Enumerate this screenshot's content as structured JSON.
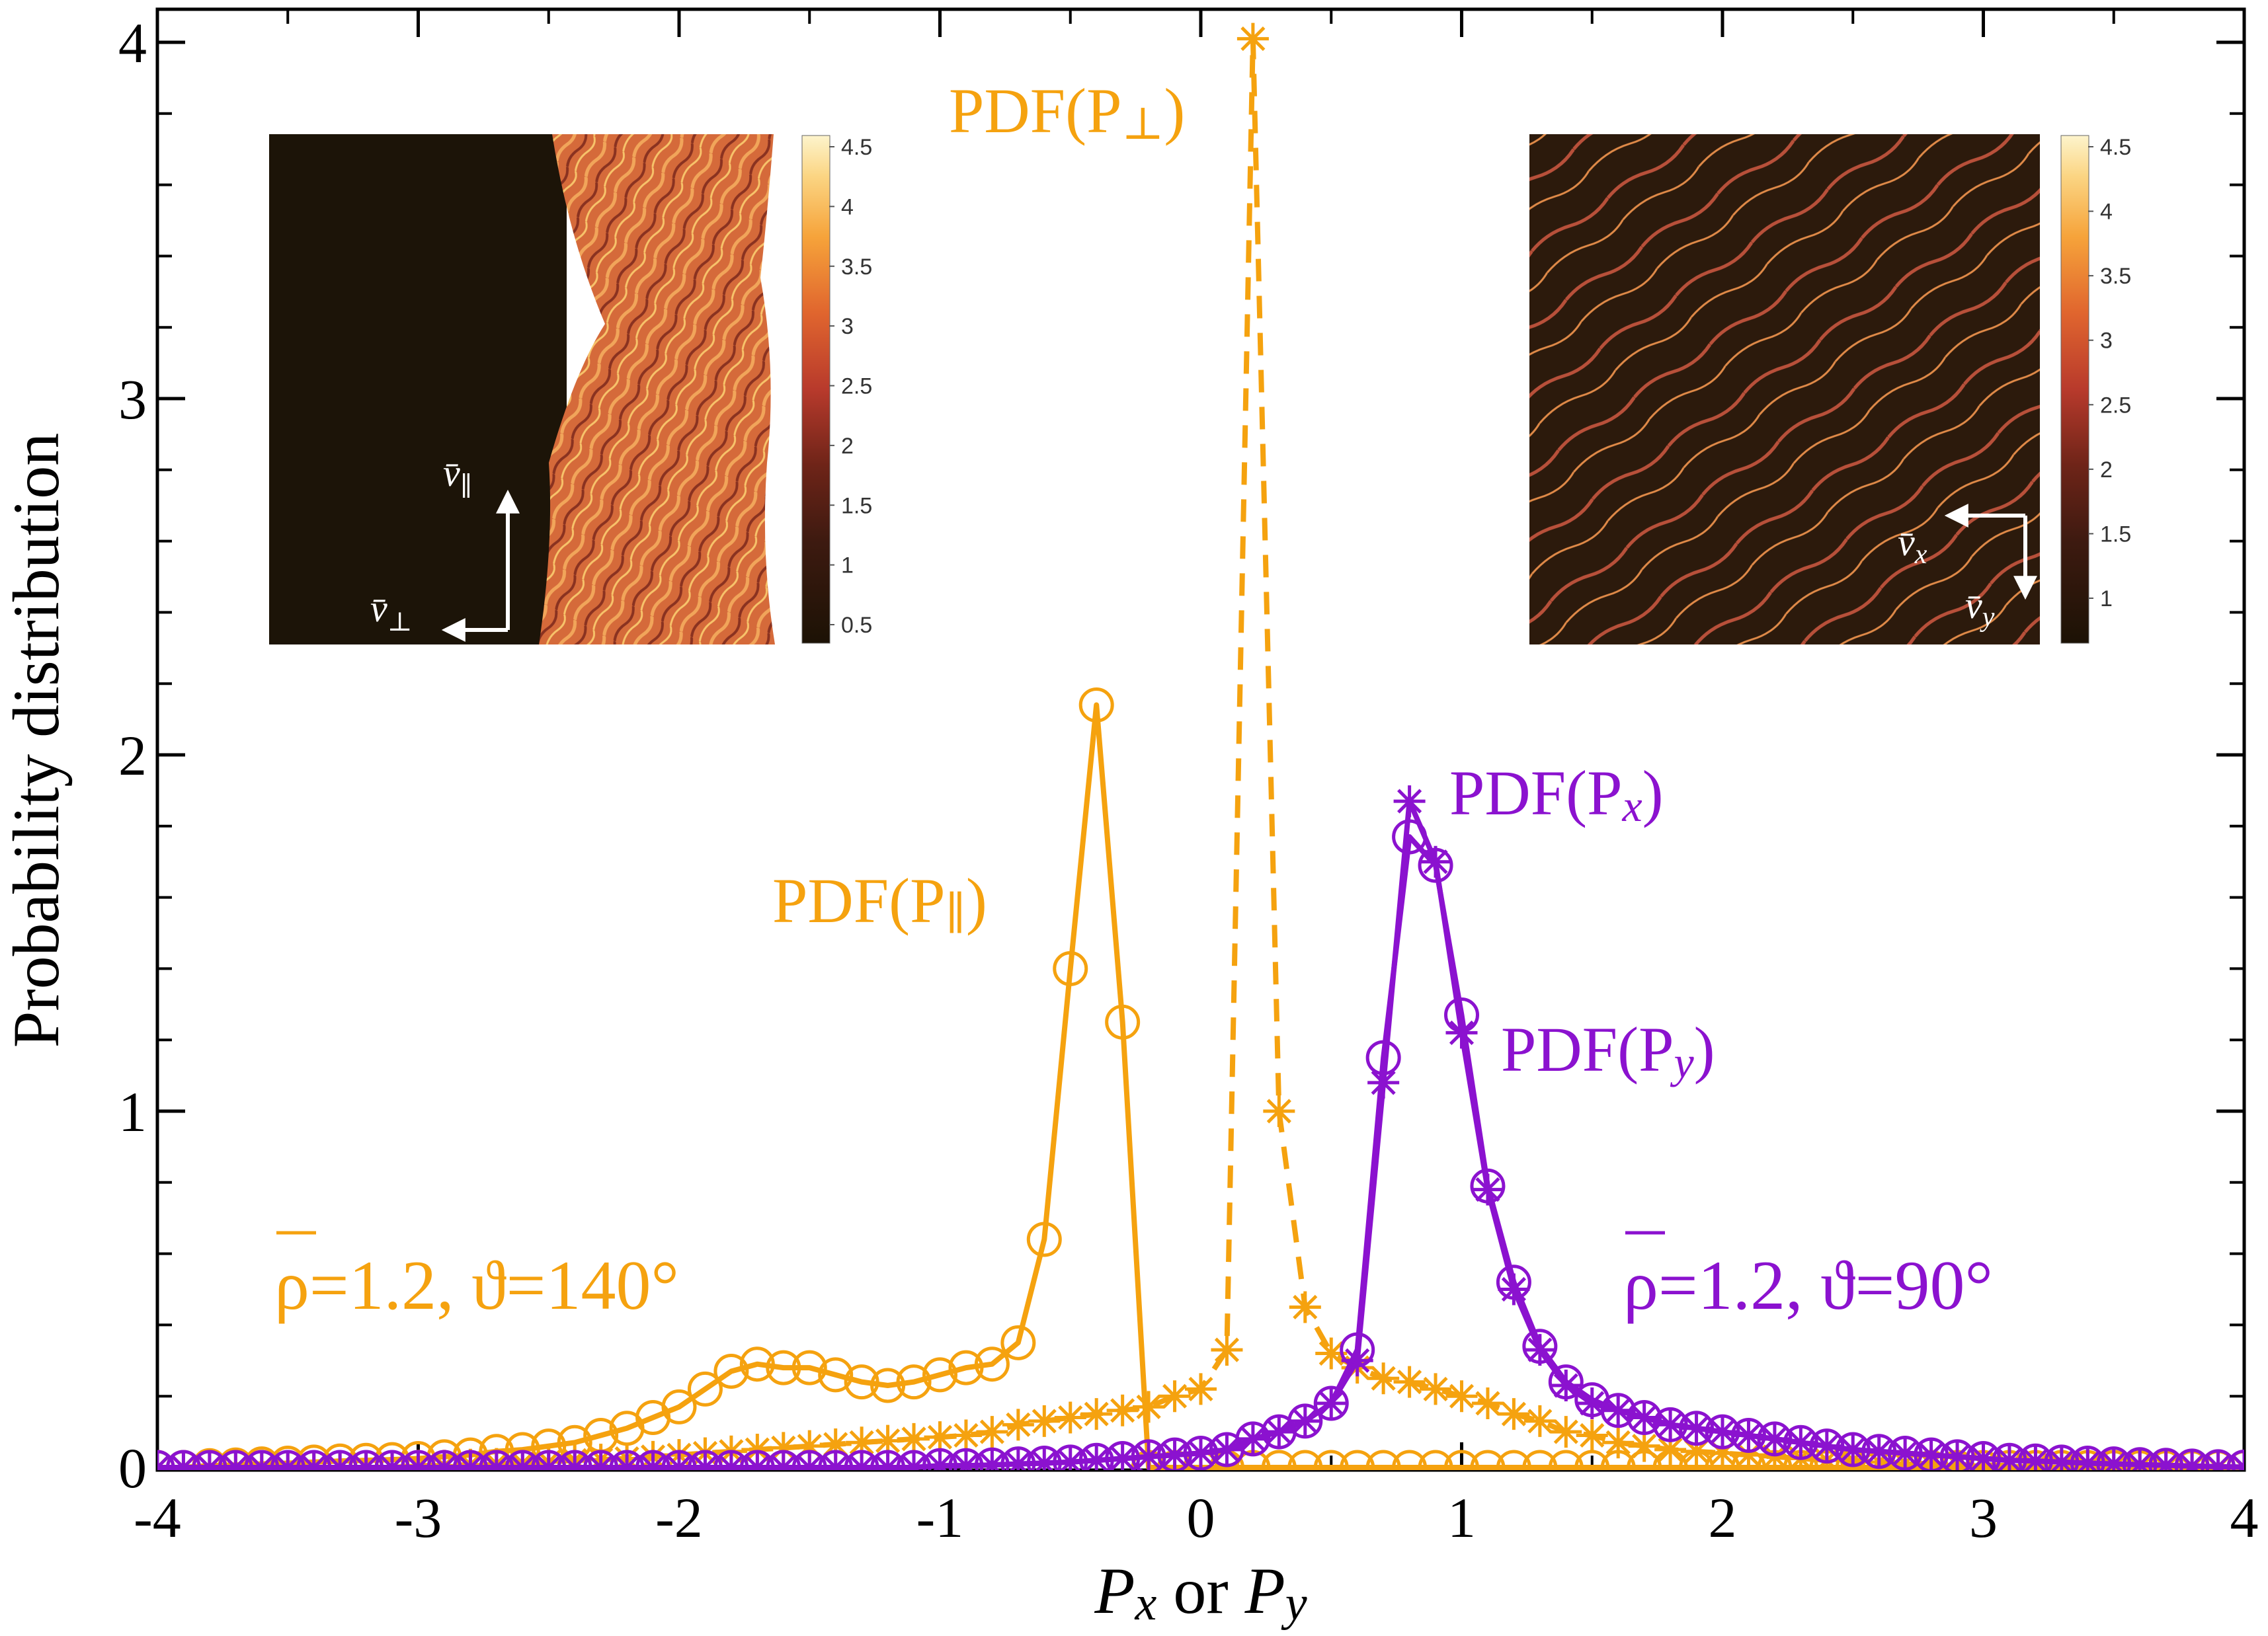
{
  "chart_data": {
    "type": "line",
    "title": "",
    "xlabel": {
      "p1": "P",
      "s1": "x",
      "mid": " or ",
      "p2": "P",
      "s2": "y"
    },
    "ylabel": "Probability distribution",
    "xlim": [
      -4,
      4
    ],
    "ylim": [
      0,
      4
    ],
    "x_ticks": [
      -4,
      -3,
      -2,
      -1,
      0,
      1,
      2,
      3,
      4
    ],
    "y_ticks": [
      0,
      1,
      2,
      3,
      4
    ],
    "x_tick_labels": [
      "-4",
      "-3",
      "-2",
      "-1",
      "0",
      "1",
      "2",
      "3",
      "4"
    ],
    "y_tick_labels": [
      "0",
      "1",
      "2",
      "3",
      "4"
    ],
    "colors": {
      "orange": "#f5a20f",
      "purple": "#8b12cf",
      "axis": "#000000"
    },
    "series": [
      {
        "name": "PDF(P∥)",
        "label_main": "PDF(P",
        "label_sub": "∥",
        "label_close": ")",
        "color": "#f5a20f",
        "line": "solid",
        "marker": "circle",
        "x": [
          -4.0,
          -3.9,
          -3.8,
          -3.7,
          -3.6,
          -3.5,
          -3.4,
          -3.3,
          -3.2,
          -3.1,
          -3.0,
          -2.9,
          -2.8,
          -2.7,
          -2.6,
          -2.5,
          -2.4,
          -2.3,
          -2.2,
          -2.1,
          -2.0,
          -1.9,
          -1.8,
          -1.7,
          -1.6,
          -1.5,
          -1.4,
          -1.3,
          -1.2,
          -1.1,
          -1.0,
          -0.9,
          -0.8,
          -0.7,
          -0.6,
          -0.5,
          -0.4,
          -0.3,
          -0.2,
          -0.1,
          0.0,
          0.1,
          0.2,
          0.3,
          0.4,
          0.5,
          0.6,
          0.7,
          0.8,
          0.9,
          1.0,
          1.1,
          1.2,
          1.3,
          1.4,
          1.5,
          1.6,
          1.7,
          1.8,
          1.9,
          2.0,
          2.1,
          2.2,
          2.3,
          2.4,
          2.5,
          2.6,
          2.7,
          2.8,
          2.9,
          3.0,
          3.1,
          3.2,
          3.3,
          3.4,
          3.5,
          3.6,
          3.7,
          3.8,
          3.9,
          4.0
        ],
        "y": [
          0.0,
          0.0,
          0.005,
          0.007,
          0.01,
          0.012,
          0.015,
          0.018,
          0.02,
          0.022,
          0.025,
          0.03,
          0.035,
          0.045,
          0.05,
          0.06,
          0.07,
          0.09,
          0.11,
          0.14,
          0.17,
          0.22,
          0.27,
          0.29,
          0.28,
          0.28,
          0.26,
          0.24,
          0.23,
          0.24,
          0.26,
          0.28,
          0.29,
          0.35,
          0.64,
          1.4,
          2.14,
          1.25,
          0.0,
          0.0,
          0.0,
          0.0,
          0.0,
          0.0,
          0.0,
          0.0,
          0.0,
          0.0,
          0.0,
          0.0,
          0.0,
          0.0,
          0.0,
          0.0,
          0.0,
          0.0,
          0.0,
          0.0,
          0.0,
          0.0,
          0.0,
          0.0,
          0.0,
          0.0,
          0.0,
          0.0,
          0.0,
          0.0,
          0.0,
          0.0,
          0.0,
          0.0,
          0.0,
          0.0,
          0.0,
          0.0,
          0.0,
          0.0,
          0.0,
          0.0,
          0.0
        ]
      },
      {
        "name": "PDF(P⊥)",
        "label_main": "PDF(P",
        "label_sub": "⊥",
        "label_close": ")",
        "color": "#f5a20f",
        "line": "dashed",
        "marker": "asterisk",
        "x": [
          -4.0,
          -3.9,
          -3.8,
          -3.7,
          -3.6,
          -3.5,
          -3.4,
          -3.3,
          -3.2,
          -3.1,
          -3.0,
          -2.9,
          -2.8,
          -2.7,
          -2.6,
          -2.5,
          -2.4,
          -2.3,
          -2.2,
          -2.1,
          -2.0,
          -1.9,
          -1.8,
          -1.7,
          -1.6,
          -1.5,
          -1.4,
          -1.3,
          -1.2,
          -1.1,
          -1.0,
          -0.9,
          -0.8,
          -0.7,
          -0.6,
          -0.5,
          -0.4,
          -0.3,
          -0.2,
          -0.1,
          0.0,
          0.1,
          0.2,
          0.3,
          0.4,
          0.5,
          0.6,
          0.7,
          0.8,
          0.9,
          1.0,
          1.1,
          1.2,
          1.3,
          1.4,
          1.5,
          1.6,
          1.7,
          1.8,
          1.9,
          2.0,
          2.1,
          2.2,
          2.3,
          2.4,
          2.5,
          2.6,
          2.7,
          2.8,
          2.9,
          3.0,
          3.1,
          3.2,
          3.3,
          3.4,
          3.5,
          3.6,
          3.7,
          3.8,
          3.9,
          4.0
        ],
        "y": [
          0.0,
          0.0,
          0.0,
          0.0,
          0.0,
          0.0,
          0.0,
          0.0,
          0.0,
          0.0,
          0.005,
          0.005,
          0.008,
          0.01,
          0.012,
          0.015,
          0.02,
          0.022,
          0.025,
          0.03,
          0.035,
          0.04,
          0.045,
          0.05,
          0.055,
          0.06,
          0.065,
          0.07,
          0.075,
          0.08,
          0.085,
          0.09,
          0.1,
          0.12,
          0.13,
          0.14,
          0.15,
          0.16,
          0.17,
          0.2,
          0.22,
          0.33,
          4.01,
          1.0,
          0.45,
          0.32,
          0.28,
          0.25,
          0.24,
          0.22,
          0.2,
          0.18,
          0.15,
          0.13,
          0.1,
          0.09,
          0.07,
          0.06,
          0.05,
          0.045,
          0.04,
          0.035,
          0.03,
          0.025,
          0.02,
          0.02,
          0.015,
          0.012,
          0.01,
          0.008,
          0.007,
          0.005,
          0.004,
          0.003,
          0.002,
          0.001,
          0.0,
          0.0,
          0.0,
          0.0,
          0.0
        ]
      },
      {
        "name": "PDF(Px)",
        "label_main": "PDF(P",
        "label_sub": "x",
        "label_close": ")",
        "color": "#8b12cf",
        "line": "solid",
        "marker": "asterisk",
        "x": [
          -4.0,
          -3.9,
          -3.8,
          -3.7,
          -3.6,
          -3.5,
          -3.4,
          -3.3,
          -3.2,
          -3.1,
          -3.0,
          -2.9,
          -2.8,
          -2.7,
          -2.6,
          -2.5,
          -2.4,
          -2.3,
          -2.2,
          -2.1,
          -2.0,
          -1.9,
          -1.8,
          -1.7,
          -1.6,
          -1.5,
          -1.4,
          -1.3,
          -1.2,
          -1.1,
          -1.0,
          -0.9,
          -0.8,
          -0.7,
          -0.6,
          -0.5,
          -0.4,
          -0.3,
          -0.2,
          -0.1,
          0.0,
          0.1,
          0.2,
          0.3,
          0.4,
          0.5,
          0.6,
          0.7,
          0.8,
          0.9,
          1.0,
          1.1,
          1.2,
          1.3,
          1.4,
          1.5,
          1.6,
          1.7,
          1.8,
          1.9,
          2.0,
          2.1,
          2.2,
          2.3,
          2.4,
          2.5,
          2.6,
          2.7,
          2.8,
          2.9,
          3.0,
          3.1,
          3.2,
          3.3,
          3.4,
          3.5,
          3.6,
          3.7,
          3.8,
          3.9,
          4.0
        ],
        "y": [
          0.0,
          0.0,
          0.0,
          0.0,
          0.0,
          0.0,
          0.0,
          0.0,
          0.0,
          0.0,
          0.0,
          0.0,
          0.0,
          0.0,
          0.0,
          0.0,
          0.0,
          0.0,
          0.0,
          0.0,
          0.0,
          0.0,
          0.0,
          0.0,
          0.0,
          0.0,
          0.0,
          0.0,
          0.0,
          0.0,
          0.005,
          0.005,
          0.007,
          0.01,
          0.012,
          0.015,
          0.02,
          0.025,
          0.03,
          0.035,
          0.04,
          0.05,
          0.08,
          0.1,
          0.13,
          0.18,
          0.3,
          1.08,
          1.87,
          1.7,
          1.22,
          0.78,
          0.5,
          0.33,
          0.23,
          0.18,
          0.16,
          0.14,
          0.12,
          0.11,
          0.1,
          0.09,
          0.08,
          0.07,
          0.06,
          0.05,
          0.045,
          0.04,
          0.035,
          0.03,
          0.025,
          0.02,
          0.018,
          0.015,
          0.012,
          0.01,
          0.008,
          0.006,
          0.004,
          0.002,
          0.001
        ]
      },
      {
        "name": "PDF(Py)",
        "label_main": "PDF(P",
        "label_sub": "y",
        "label_close": ")",
        "color": "#8b12cf",
        "line": "solid",
        "marker": "circle",
        "x": [
          -4.0,
          -3.9,
          -3.8,
          -3.7,
          -3.6,
          -3.5,
          -3.4,
          -3.3,
          -3.2,
          -3.1,
          -3.0,
          -2.9,
          -2.8,
          -2.7,
          -2.6,
          -2.5,
          -2.4,
          -2.3,
          -2.2,
          -2.1,
          -2.0,
          -1.9,
          -1.8,
          -1.7,
          -1.6,
          -1.5,
          -1.4,
          -1.3,
          -1.2,
          -1.1,
          -1.0,
          -0.9,
          -0.8,
          -0.7,
          -0.6,
          -0.5,
          -0.4,
          -0.3,
          -0.2,
          -0.1,
          0.0,
          0.1,
          0.2,
          0.3,
          0.4,
          0.5,
          0.6,
          0.7,
          0.8,
          0.9,
          1.0,
          1.1,
          1.2,
          1.3,
          1.4,
          1.5,
          1.6,
          1.7,
          1.8,
          1.9,
          2.0,
          2.1,
          2.2,
          2.3,
          2.4,
          2.5,
          2.6,
          2.7,
          2.8,
          2.9,
          3.0,
          3.1,
          3.2,
          3.3,
          3.4,
          3.5,
          3.6,
          3.7,
          3.8,
          3.9,
          4.0
        ],
        "y": [
          0.0,
          0.0,
          0.0,
          0.0,
          0.0,
          0.0,
          0.0,
          0.0,
          0.0,
          0.0,
          0.0,
          0.0,
          0.0,
          0.0,
          0.0,
          0.0,
          0.0,
          0.0,
          0.0,
          0.0,
          0.0,
          0.0,
          0.0,
          0.0,
          0.0,
          0.0,
          0.0,
          0.0,
          0.0,
          0.0,
          0.005,
          0.005,
          0.007,
          0.01,
          0.012,
          0.015,
          0.02,
          0.025,
          0.03,
          0.035,
          0.04,
          0.05,
          0.08,
          0.1,
          0.13,
          0.18,
          0.33,
          1.15,
          1.77,
          1.69,
          1.27,
          0.79,
          0.52,
          0.34,
          0.24,
          0.19,
          0.16,
          0.14,
          0.12,
          0.11,
          0.1,
          0.09,
          0.08,
          0.07,
          0.06,
          0.05,
          0.045,
          0.04,
          0.035,
          0.03,
          0.025,
          0.02,
          0.018,
          0.015,
          0.012,
          0.01,
          0.008,
          0.006,
          0.004,
          0.002,
          0.001
        ]
      }
    ],
    "annotations": {
      "left_params": {
        "rho": "ρ",
        "rest": "=1.2, ϑ=140°",
        "color": "#f5a20f"
      },
      "right_params": {
        "rho": "ρ",
        "rest": "=1.2, ϑ=90°",
        "color": "#8b12cf"
      }
    },
    "insets": [
      {
        "name": "left-inset",
        "colorbar_ticks": [
          "4.5",
          "4",
          "3.5",
          "3",
          "2.5",
          "2",
          "1.5",
          "1",
          "0.5"
        ],
        "arrow_labels": {
          "up": "v̄∥",
          "left": "v̄⊥"
        },
        "arrow_labels_parts": {
          "up_main": "v̄",
          "up_sub": "∥",
          "left_main": "v̄",
          "left_sub": "⊥"
        }
      },
      {
        "name": "right-inset",
        "colorbar_ticks": [
          "4.5",
          "4",
          "3.5",
          "3",
          "2.5",
          "2",
          "1.5",
          "1"
        ],
        "arrow_labels": {
          "left": "v̄x",
          "down": "v̄y"
        },
        "arrow_labels_parts": {
          "left_main": "v̄",
          "left_sub": "x",
          "down_main": "v̄",
          "down_sub": "y"
        }
      }
    ]
  }
}
